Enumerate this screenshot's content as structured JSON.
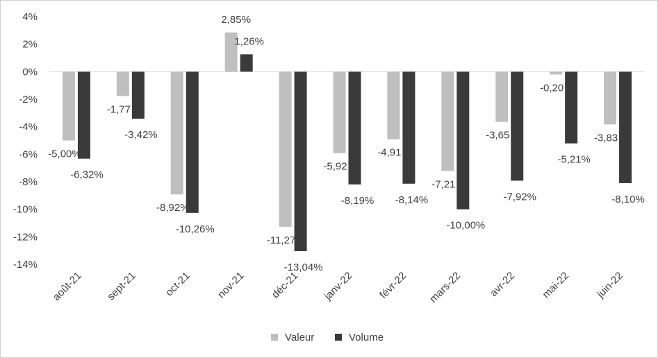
{
  "chart_data": {
    "type": "bar",
    "categories": [
      "août-21",
      "sept-21",
      "oct-21",
      "nov-21",
      "déc-21",
      "janv-22",
      "févr-22",
      "mars-22",
      "avr-22",
      "mai-22",
      "juin-22"
    ],
    "series": [
      {
        "name": "Valeur",
        "values": [
          -5.0,
          -1.77,
          -8.92,
          2.85,
          -11.27,
          -5.92,
          -4.91,
          -7.21,
          -3.65,
          -0.2,
          -3.83
        ],
        "labels": [
          "-5,00%",
          "-1,77",
          "-8,92%",
          "2,85%",
          "-11,27",
          "-5,92",
          "-4,91",
          "-7,21",
          "-3,65",
          "-0,20",
          "-3,83"
        ],
        "color": "#bfbfbf"
      },
      {
        "name": "Volume",
        "values": [
          -6.32,
          -3.42,
          -10.26,
          1.26,
          -13.04,
          -8.19,
          -8.14,
          -10.0,
          -7.92,
          -5.21,
          -8.1
        ],
        "labels": [
          "-6,32%",
          "-3,42%",
          "-10,26%",
          "1,26%",
          "-13,04%",
          "-8,19%",
          "-8,14%",
          "-10,00%",
          "-7,92%",
          "-5,21%",
          "-8,10%"
        ],
        "color": "#3a3a3a"
      }
    ],
    "ylim": [
      -14,
      4
    ],
    "yticks": [
      4,
      2,
      0,
      -2,
      -4,
      -6,
      -8,
      -10,
      -12,
      -14
    ],
    "ytick_labels": [
      "4%",
      "2%",
      "0%",
      "-2%",
      "-4%",
      "-6%",
      "-8%",
      "-10%",
      "-12%",
      "-14%"
    ],
    "grid": false,
    "legend": "bottom",
    "title": "",
    "xlabel": "",
    "ylabel": ""
  },
  "legend": {
    "valeur_label": "Valeur",
    "volume_label": "Volume"
  }
}
